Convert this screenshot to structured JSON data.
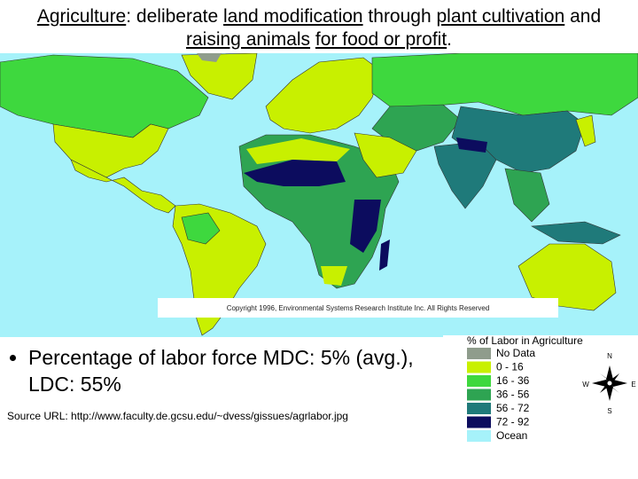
{
  "title_segments": [
    {
      "text": "Agriculture",
      "underline": true
    },
    {
      "text": ": deliberate ",
      "underline": false
    },
    {
      "text": "land modification",
      "underline": true
    },
    {
      "text": " through ",
      "underline": false
    },
    {
      "text": "plant cultivation",
      "underline": true
    },
    {
      "text": " and ",
      "underline": false
    },
    {
      "text": "raising animals",
      "underline": true
    },
    {
      "text": " ",
      "underline": false
    },
    {
      "text": "for food or profit",
      "underline": true
    },
    {
      "text": ".",
      "underline": false
    }
  ],
  "map": {
    "copyright": "Copyright 1996, Environmental Systems Research Institute Inc. All Rights Reserved",
    "legend": {
      "title": "% of Labor in Agriculture",
      "items": [
        {
          "label": "No Data",
          "color": "#8f9c8c"
        },
        {
          "label": "0 - 16",
          "color": "#c8f000"
        },
        {
          "label": "16 - 36",
          "color": "#3ed83e"
        },
        {
          "label": "36 - 56",
          "color": "#2ea452"
        },
        {
          "label": "56 - 72",
          "color": "#1f7a7a"
        },
        {
          "label": "72 - 92",
          "color": "#0c0c5e"
        },
        {
          "label": "Ocean",
          "color": "#a6f2fa"
        }
      ]
    },
    "compass": {
      "n": "N",
      "s": "S",
      "w": "W",
      "e": "E"
    }
  },
  "bullet": "Percentage of labor force MDC: 5% (avg.), LDC: 55%",
  "source": "Source URL: http://www.faculty.de.gcsu.edu/~dvess/gissues/agrlabor.jpg"
}
